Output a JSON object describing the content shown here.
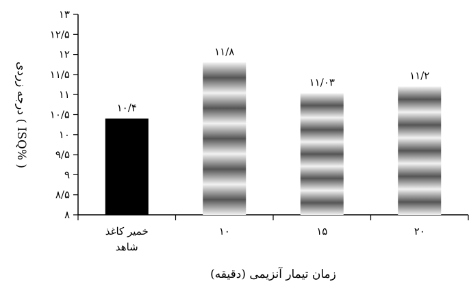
{
  "chart_data": {
    "type": "bar",
    "xlabel": "زمان تیمار آنزیمی (دقیقه)",
    "ylabel": "درجه زردی ( ISQ% )",
    "ylim": [
      8,
      13
    ],
    "y_ticks": [
      {
        "value": 8,
        "label": "۸"
      },
      {
        "value": 8.5,
        "label": "۸/۵"
      },
      {
        "value": 9,
        "label": "۹"
      },
      {
        "value": 9.5,
        "label": "۹/۵"
      },
      {
        "value": 10,
        "label": "۱۰"
      },
      {
        "value": 10.5,
        "label": "۱۰/۵"
      },
      {
        "value": 11,
        "label": "۱۱"
      },
      {
        "value": 11.5,
        "label": "۱۱/۵"
      },
      {
        "value": 12,
        "label": "۱۲"
      },
      {
        "value": 12.5,
        "label": "۱۲/۵"
      },
      {
        "value": 13,
        "label": "۱۳"
      }
    ],
    "categories": [
      {
        "lines": [
          "خمیر کاغذ",
          "شاهد"
        ]
      },
      {
        "lines": [
          "۱۰"
        ]
      },
      {
        "lines": [
          "۱۵"
        ]
      },
      {
        "lines": [
          "۲۰"
        ]
      }
    ],
    "values": [
      10.4,
      11.8,
      11.03,
      11.2
    ],
    "data_labels": [
      "۱۰/۴",
      "۱۱/۸",
      "۱۱/۰۳",
      "۱۱/۲"
    ],
    "bar_styles": [
      "solid-black",
      "gray-bands",
      "gray-bands",
      "gray-bands"
    ],
    "colors": {
      "control_bar": "#000000",
      "band_dark": "#555555",
      "band_light": "#f2f2f2",
      "axis": "#000000"
    },
    "grid": false,
    "legend": "none"
  }
}
